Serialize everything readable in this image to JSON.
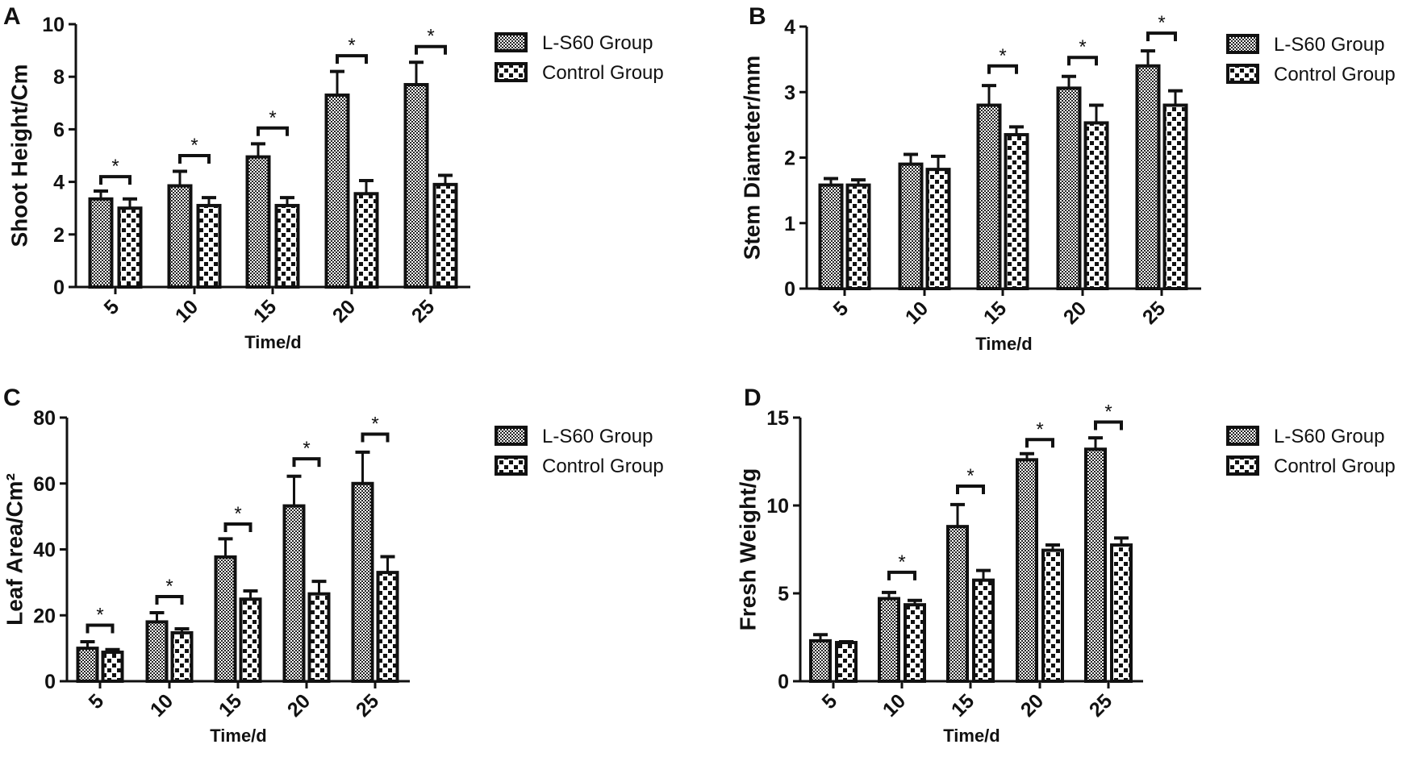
{
  "chart_data": [
    {
      "type": "bar",
      "panel": "A",
      "title": "",
      "xlabel": "Time/d",
      "ylabel": "Shoot Height/Cm",
      "categories": [
        "5",
        "10",
        "15",
        "20",
        "25"
      ],
      "ylim": [
        0,
        10
      ],
      "yticks": [
        0,
        2,
        4,
        6,
        8,
        10
      ],
      "legend": "right",
      "series": [
        {
          "name": "L-S60 Group",
          "values": [
            3.35,
            3.85,
            4.95,
            7.3,
            7.7
          ],
          "errors": [
            0.3,
            0.55,
            0.5,
            0.9,
            0.85
          ]
        },
        {
          "name": "Control Group",
          "values": [
            3.0,
            3.1,
            3.1,
            3.55,
            3.9
          ],
          "errors": [
            0.35,
            0.3,
            0.3,
            0.5,
            0.35
          ]
        }
      ],
      "significance": [
        {
          "category": "5",
          "label": "*",
          "level": 4.2
        },
        {
          "category": "10",
          "label": "*",
          "level": 5.0
        },
        {
          "category": "15",
          "label": "*",
          "level": 6.05
        },
        {
          "category": "20",
          "label": "*",
          "level": 8.8
        },
        {
          "category": "25",
          "label": "*",
          "level": 9.15
        }
      ]
    },
    {
      "type": "bar",
      "panel": "B",
      "title": "",
      "xlabel": "Time/d",
      "ylabel": "Stem Diameter/mm",
      "categories": [
        "5",
        "10",
        "15",
        "20",
        "25"
      ],
      "ylim": [
        0,
        4
      ],
      "yticks": [
        0,
        1,
        2,
        3,
        4
      ],
      "legend": "right",
      "series": [
        {
          "name": "L-S60 Group",
          "values": [
            1.58,
            1.9,
            2.8,
            3.06,
            3.4
          ],
          "errors": [
            0.1,
            0.15,
            0.3,
            0.18,
            0.23
          ]
        },
        {
          "name": "Control Group",
          "values": [
            1.58,
            1.82,
            2.35,
            2.53,
            2.8
          ],
          "errors": [
            0.08,
            0.2,
            0.12,
            0.27,
            0.22
          ]
        }
      ],
      "significance": [
        {
          "category": "15",
          "label": "*",
          "level": 3.4
        },
        {
          "category": "20",
          "label": "*",
          "level": 3.53
        },
        {
          "category": "25",
          "label": "*",
          "level": 3.9
        }
      ]
    },
    {
      "type": "bar",
      "panel": "C",
      "title": "",
      "xlabel": "Time/d",
      "ylabel": "Leaf Area/Cm²",
      "categories": [
        "5",
        "10",
        "15",
        "20",
        "25"
      ],
      "ylim": [
        0,
        80
      ],
      "yticks": [
        0,
        20,
        40,
        60,
        80
      ],
      "legend": "right",
      "series": [
        {
          "name": "L-S60 Group",
          "values": [
            10,
            18,
            37.7,
            53.2,
            60
          ],
          "errors": [
            2,
            2.8,
            5.5,
            9,
            9.5
          ]
        },
        {
          "name": "Control Group",
          "values": [
            8.8,
            14.7,
            24.9,
            26.5,
            33
          ],
          "errors": [
            0.8,
            1.2,
            2.5,
            3.8,
            4.8
          ]
        }
      ],
      "significance": [
        {
          "category": "5",
          "label": "*",
          "level": 17
        },
        {
          "category": "10",
          "label": "*",
          "level": 25.7
        },
        {
          "category": "15",
          "label": "*",
          "level": 47.7
        },
        {
          "category": "20",
          "label": "*",
          "level": 67.5
        },
        {
          "category": "25",
          "label": "*",
          "level": 75
        }
      ]
    },
    {
      "type": "bar",
      "panel": "D",
      "title": "",
      "xlabel": "Time/d",
      "ylabel": "Fresh Weight/g",
      "categories": [
        "5",
        "10",
        "15",
        "20",
        "25"
      ],
      "ylim": [
        0,
        15
      ],
      "yticks": [
        0,
        5,
        10,
        15
      ],
      "legend": "right",
      "series": [
        {
          "name": "L-S60 Group",
          "values": [
            2.3,
            4.7,
            8.8,
            12.6,
            13.2
          ],
          "errors": [
            0.35,
            0.35,
            1.25,
            0.35,
            0.65
          ]
        },
        {
          "name": "Control Group",
          "values": [
            2.2,
            4.35,
            5.75,
            7.45,
            7.75
          ],
          "errors": [
            0.05,
            0.25,
            0.55,
            0.3,
            0.4
          ]
        }
      ],
      "significance": [
        {
          "category": "10",
          "label": "*",
          "level": 6.2
        },
        {
          "category": "15",
          "label": "*",
          "level": 11.1
        },
        {
          "category": "20",
          "label": "*",
          "level": 13.75
        },
        {
          "category": "25",
          "label": "*",
          "level": 14.75
        }
      ]
    }
  ]
}
